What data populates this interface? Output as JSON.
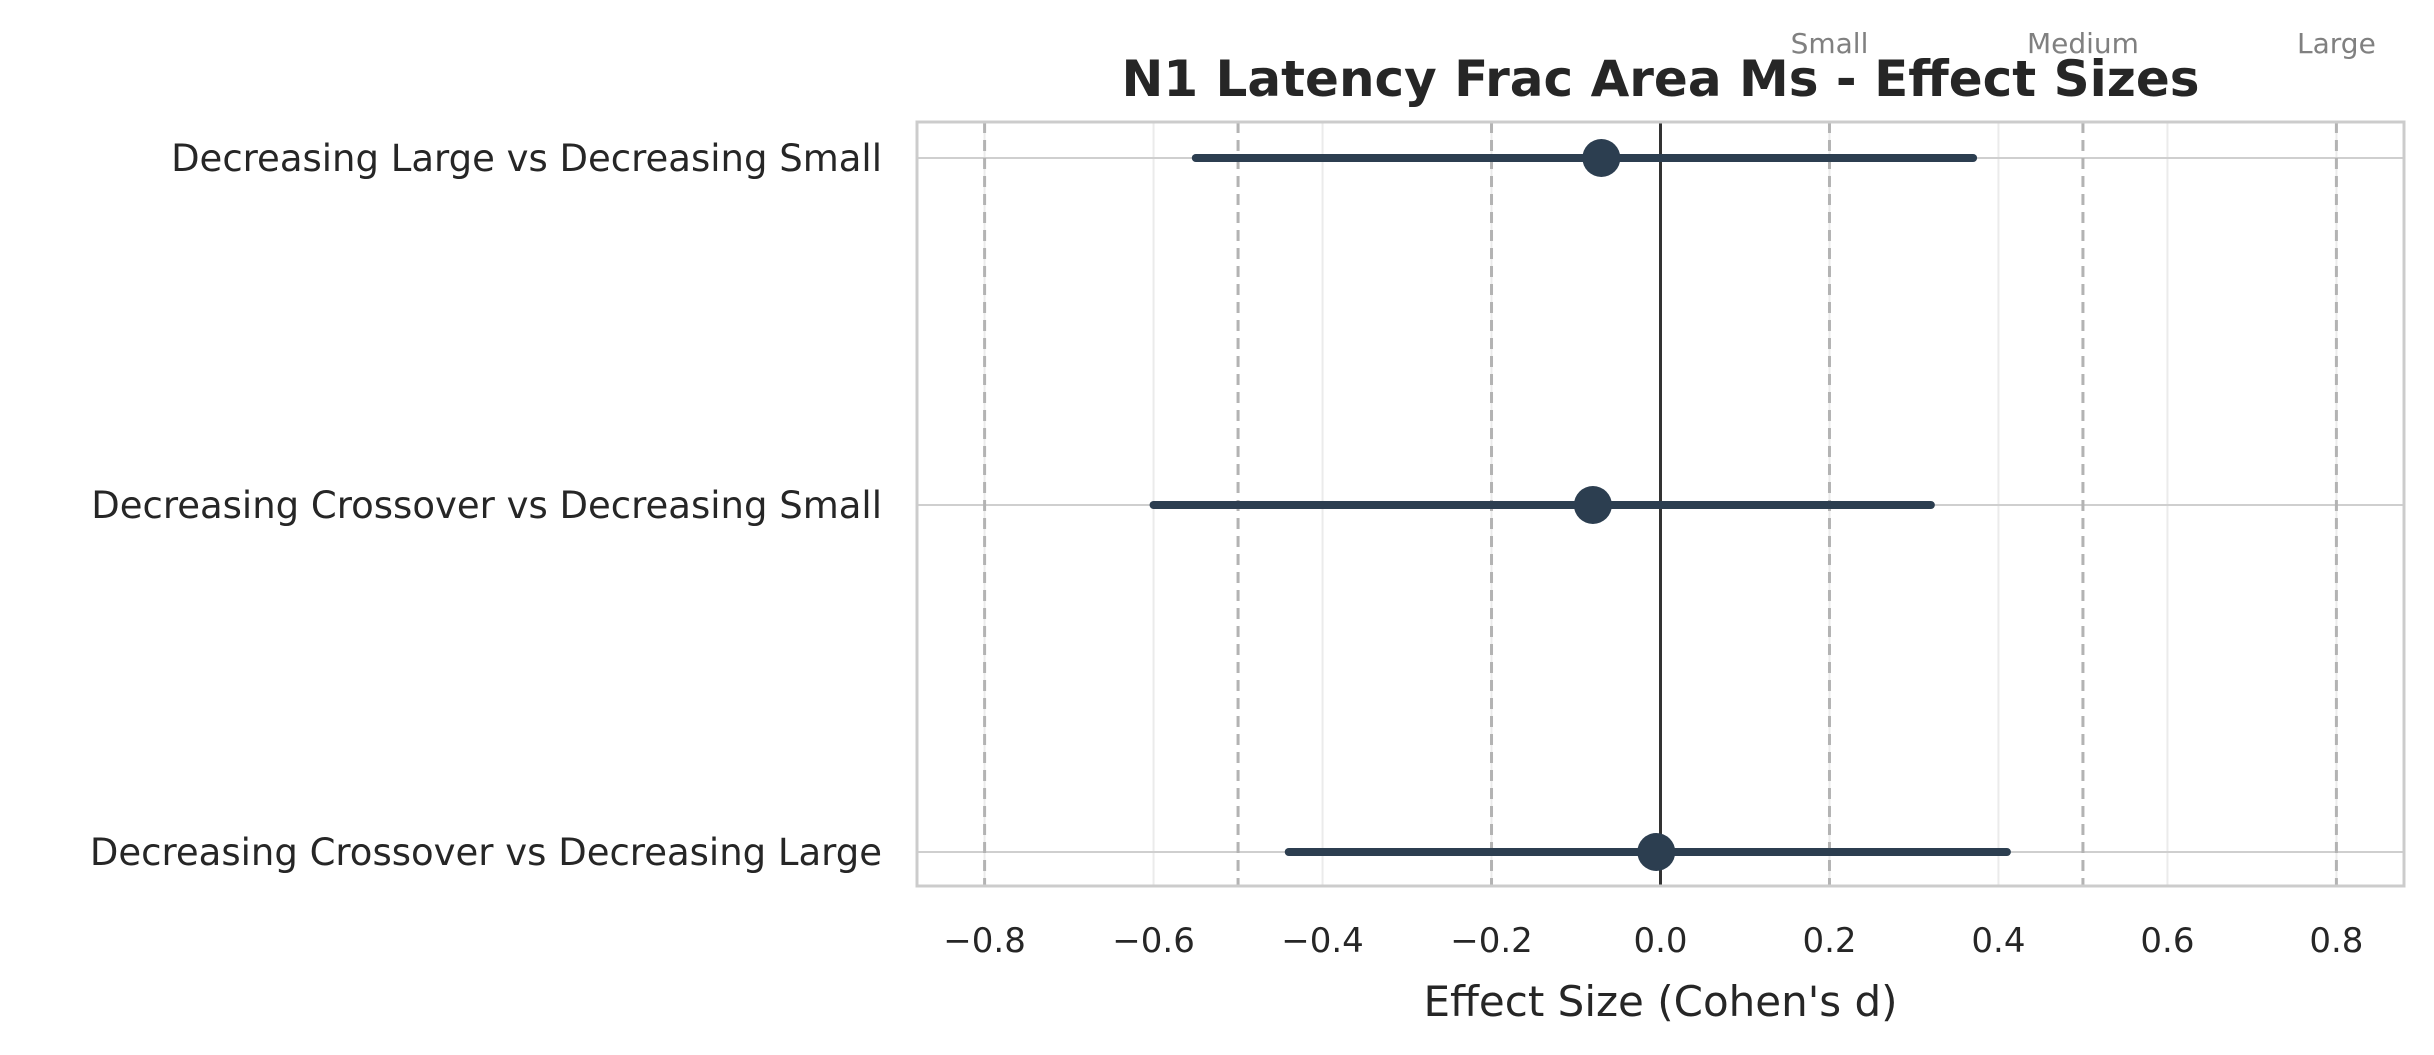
{
  "chart_data": {
    "type": "forest",
    "title": "N1 Latency Frac Area Ms - Effect Sizes",
    "xlabel": "Effect Size (Cohen's d)",
    "xlim": [
      -0.88,
      0.88
    ],
    "xticks": [
      -0.8,
      -0.6,
      -0.4,
      -0.2,
      0.0,
      0.2,
      0.4,
      0.6,
      0.8
    ],
    "xtick_labels": [
      "−0.8",
      "−0.6",
      "−0.4",
      "−0.2",
      "0.0",
      "0.2",
      "0.4",
      "0.6",
      "0.8"
    ],
    "categories": [
      "Decreasing Large vs Decreasing Small",
      "Decreasing Crossover vs Decreasing Small",
      "Decreasing Crossover vs Decreasing Large"
    ],
    "estimates": [
      -0.07,
      -0.08,
      -0.005
    ],
    "ci_lower": [
      -0.55,
      -0.6,
      -0.44
    ],
    "ci_upper": [
      0.37,
      0.32,
      0.41
    ],
    "reference_lines": [
      {
        "value": -0.8,
        "label": ""
      },
      {
        "value": -0.5,
        "label": ""
      },
      {
        "value": -0.2,
        "label": ""
      },
      {
        "value": 0.2,
        "label": "Small"
      },
      {
        "value": 0.5,
        "label": "Medium"
      },
      {
        "value": 0.8,
        "label": "Large"
      }
    ],
    "zero_line": 0,
    "grid": true,
    "colors": {
      "marker": "#2c3e50",
      "zero_line": "#333333",
      "reference_line": "#b3b3b3",
      "grid": "#ebebeb",
      "axes_border": "#cccccc"
    }
  }
}
